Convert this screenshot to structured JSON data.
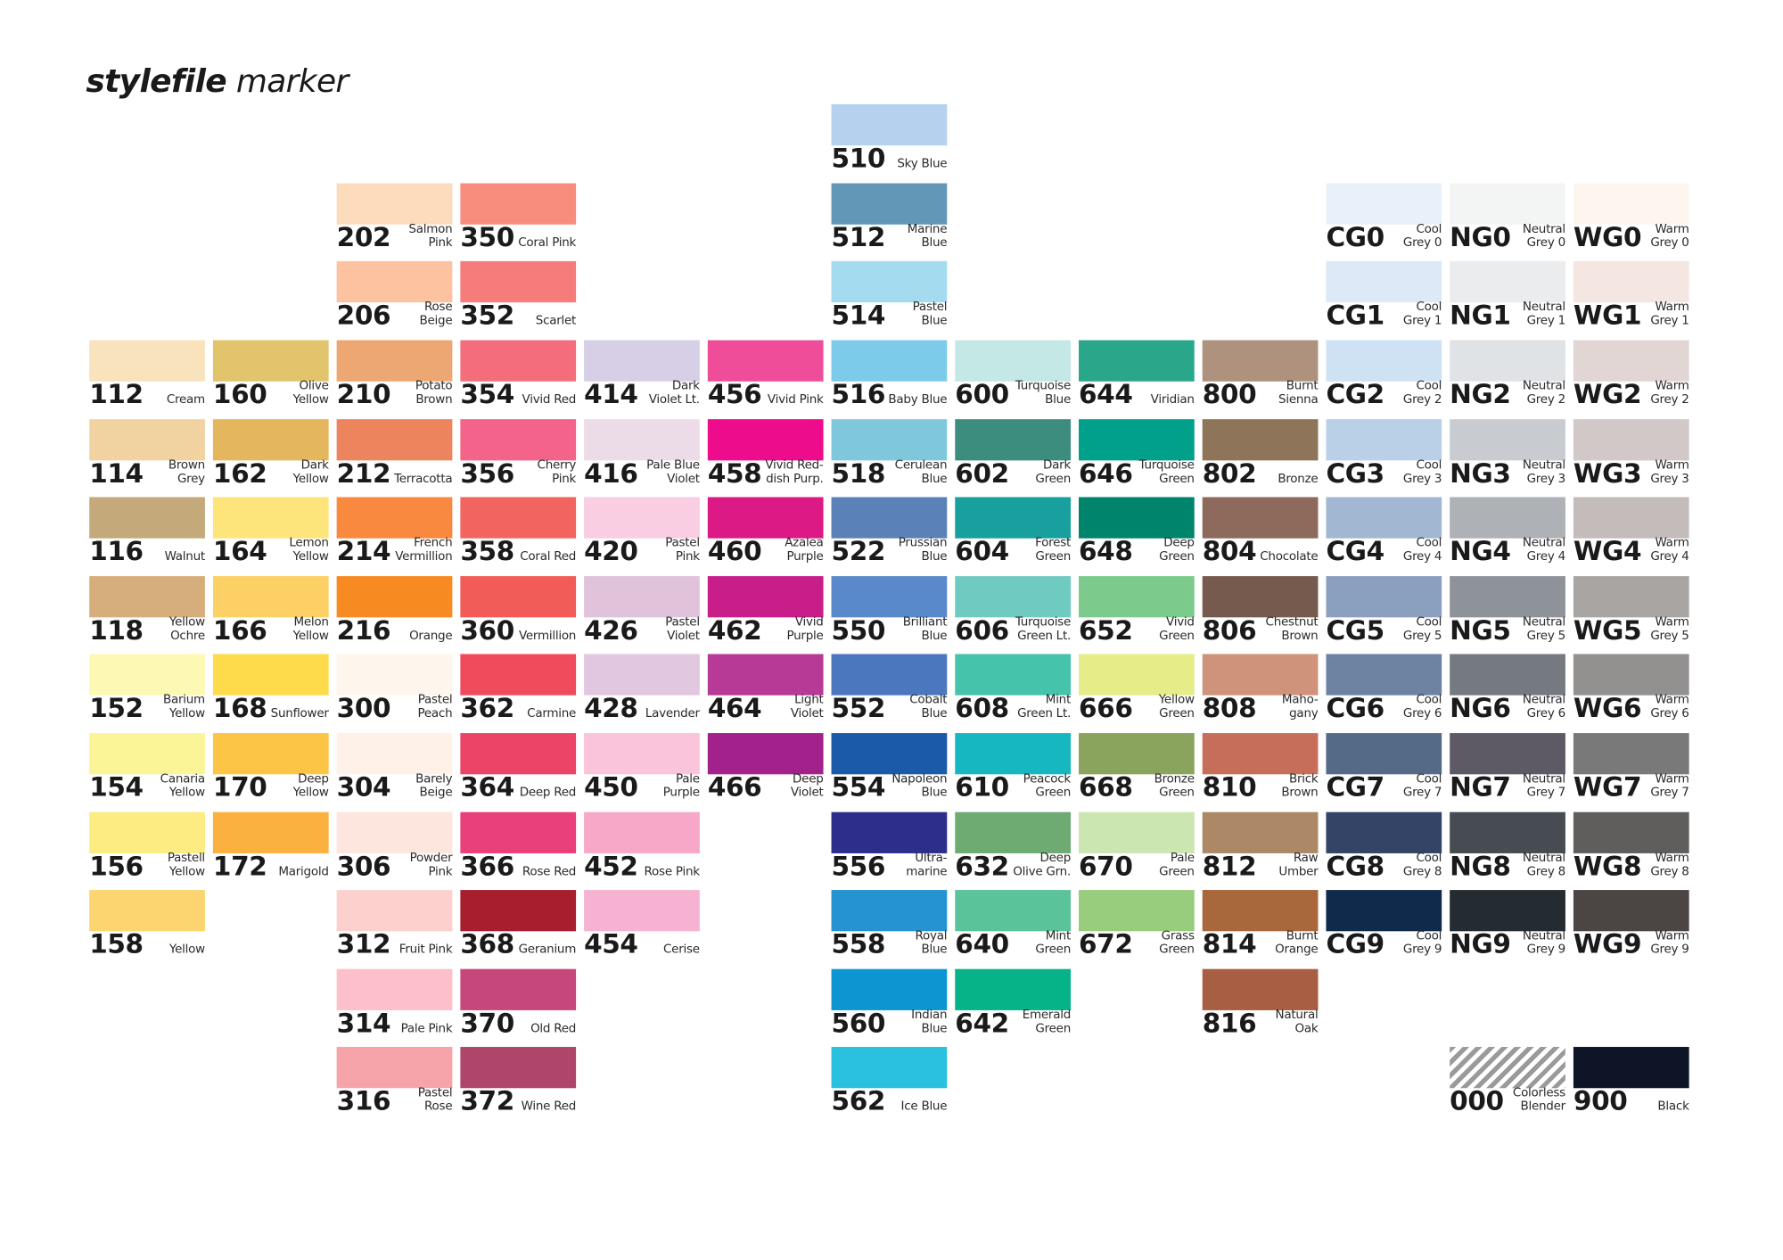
{
  "title": {
    "bold": "stylefile",
    "rest": " marker"
  },
  "swatches": [
    {
      "code": "112",
      "name": "Cream",
      "color": "#f9e3bd",
      "col": 0,
      "row": 0
    },
    {
      "code": "114",
      "name": "Brown\nGrey",
      "color": "#f0d3a0",
      "col": 0,
      "row": 1
    },
    {
      "code": "116",
      "name": "Walnut",
      "color": "#c4a97b",
      "col": 0,
      "row": 2
    },
    {
      "code": "118",
      "name": "Yellow\nOchre",
      "color": "#d6ae7b",
      "col": 0,
      "row": 3
    },
    {
      "code": "152",
      "name": "Barium\nYellow",
      "color": "#fdf8b3",
      "col": 0,
      "row": 4
    },
    {
      "code": "154",
      "name": "Canaria\nYellow",
      "color": "#fcf597",
      "col": 0,
      "row": 5
    },
    {
      "code": "156",
      "name": "Pastell\nYellow",
      "color": "#fdec81",
      "col": 0,
      "row": 6
    },
    {
      "code": "158",
      "name": "Yellow",
      "color": "#fcd570",
      "col": 0,
      "row": 7
    },
    {
      "code": "160",
      "name": "Olive\nYellow",
      "color": "#e2c46c",
      "col": 1,
      "row": 0
    },
    {
      "code": "162",
      "name": "Dark\nYellow",
      "color": "#e4b65d",
      "col": 1,
      "row": 1
    },
    {
      "code": "164",
      "name": "Lemon\nYellow",
      "color": "#fde57c",
      "col": 1,
      "row": 2
    },
    {
      "code": "166",
      "name": "Melon\nYellow",
      "color": "#fdd065",
      "col": 1,
      "row": 3
    },
    {
      "code": "168",
      "name": "Sunflower",
      "color": "#fedb4a",
      "col": 1,
      "row": 4
    },
    {
      "code": "170",
      "name": "Deep\nYellow",
      "color": "#fdc545",
      "col": 1,
      "row": 5
    },
    {
      "code": "172",
      "name": "Marigold",
      "color": "#fbb13f",
      "col": 1,
      "row": 6
    },
    {
      "code": "202",
      "name": "Salmon\nPink",
      "color": "#fddbbd",
      "col": 2,
      "row": -2
    },
    {
      "code": "206",
      "name": "Rose\nBeige",
      "color": "#fdc3a1",
      "col": 2,
      "row": -1
    },
    {
      "code": "210",
      "name": "Potato\nBrown",
      "color": "#eda773",
      "col": 2,
      "row": 0
    },
    {
      "code": "212",
      "name": "Terracotta",
      "color": "#ec855e",
      "col": 2,
      "row": 1
    },
    {
      "code": "214",
      "name": "French\nVermillion",
      "color": "#f9893f",
      "col": 2,
      "row": 2
    },
    {
      "code": "216",
      "name": "Orange",
      "color": "#f78b21",
      "col": 2,
      "row": 3
    },
    {
      "code": "300",
      "name": "Pastel\nPeach",
      "color": "#fef5ec",
      "col": 2,
      "row": 4
    },
    {
      "code": "304",
      "name": "Barely\nBeige",
      "color": "#fdf1e8",
      "col": 2,
      "row": 5
    },
    {
      "code": "306",
      "name": "Powder\nPink",
      "color": "#fde6de",
      "col": 2,
      "row": 6
    },
    {
      "code": "312",
      "name": "Fruit Pink",
      "color": "#fcd1cd",
      "col": 2,
      "row": 7
    },
    {
      "code": "314",
      "name": "Pale Pink",
      "color": "#fdbfca",
      "col": 2,
      "row": 8
    },
    {
      "code": "316",
      "name": "Pastel\nRose",
      "color": "#f7a3aa",
      "col": 2,
      "row": 9
    },
    {
      "code": "350",
      "name": "Coral Pink",
      "color": "#f88d7e",
      "col": 3,
      "row": -2
    },
    {
      "code": "352",
      "name": "Scarlet",
      "color": "#f67b7b",
      "col": 3,
      "row": -1
    },
    {
      "code": "354",
      "name": "Vivid Red",
      "color": "#f46d7d",
      "col": 3,
      "row": 0
    },
    {
      "code": "356",
      "name": "Cherry\nPink",
      "color": "#f46389",
      "col": 3,
      "row": 1
    },
    {
      "code": "358",
      "name": "Coral Red",
      "color": "#f26460",
      "col": 3,
      "row": 2
    },
    {
      "code": "360",
      "name": "Vermillion",
      "color": "#f15c58",
      "col": 3,
      "row": 3
    },
    {
      "code": "362",
      "name": "Carmine",
      "color": "#ef4b5c",
      "col": 3,
      "row": 4
    },
    {
      "code": "364",
      "name": "Deep Red",
      "color": "#ec4467",
      "col": 3,
      "row": 5
    },
    {
      "code": "366",
      "name": "Rose Red",
      "color": "#e9407b",
      "col": 3,
      "row": 6
    },
    {
      "code": "368",
      "name": "Geranium",
      "color": "#a71f2f",
      "col": 3,
      "row": 7
    },
    {
      "code": "370",
      "name": "Old Red",
      "color": "#c6477a",
      "col": 3,
      "row": 8
    },
    {
      "code": "372",
      "name": "Wine Red",
      "color": "#ae466b",
      "col": 3,
      "row": 9
    },
    {
      "code": "414",
      "name": "Dark\nViolet Lt.",
      "color": "#d7cfe5",
      "col": 4,
      "row": 0
    },
    {
      "code": "416",
      "name": "Pale Blue\nViolet",
      "color": "#ecdce8",
      "col": 4,
      "row": 1
    },
    {
      "code": "420",
      "name": "Pastel\nPink",
      "color": "#f9cde2",
      "col": 4,
      "row": 2
    },
    {
      "code": "426",
      "name": "Pastel\nViolet",
      "color": "#e1c2db",
      "col": 4,
      "row": 3
    },
    {
      "code": "428",
      "name": "Lavender",
      "color": "#e2c7e1",
      "col": 4,
      "row": 4
    },
    {
      "code": "450",
      "name": "Pale\nPurple",
      "color": "#fac4da",
      "col": 4,
      "row": 5
    },
    {
      "code": "452",
      "name": "Rose Pink",
      "color": "#f7a8c8",
      "col": 4,
      "row": 6
    },
    {
      "code": "454",
      "name": "Cerise",
      "color": "#f5b3d1",
      "col": 4,
      "row": 7
    },
    {
      "code": "456",
      "name": "Vivid Pink",
      "color": "#ef4d9a",
      "col": 5,
      "row": 0
    },
    {
      "code": "458",
      "name": "Vivid Red-\ndish Purp.",
      "color": "#ec0c8c",
      "col": 5,
      "row": 1
    },
    {
      "code": "460",
      "name": "Azalea\nPurple",
      "color": "#dc1a85",
      "col": 5,
      "row": 2
    },
    {
      "code": "462",
      "name": "Vivid\nPurple",
      "color": "#c81e8a",
      "col": 5,
      "row": 3
    },
    {
      "code": "464",
      "name": "Light\nViolet",
      "color": "#b73a97",
      "col": 5,
      "row": 4
    },
    {
      "code": "466",
      "name": "Deep\nViolet",
      "color": "#a2218a",
      "col": 5,
      "row": 5
    },
    {
      "code": "510",
      "name": "Sky Blue",
      "color": "#b5d1ee",
      "col": 6,
      "row": -3
    },
    {
      "code": "512",
      "name": "Marine\nBlue",
      "color": "#6297b7",
      "col": 6,
      "row": -2
    },
    {
      "code": "514",
      "name": "Pastel\nBlue",
      "color": "#a5dbef",
      "col": 6,
      "row": -1
    },
    {
      "code": "516",
      "name": "Baby Blue",
      "color": "#7dcbea",
      "col": 6,
      "row": 0
    },
    {
      "code": "518",
      "name": "Cerulean\nBlue",
      "color": "#7fc8dc",
      "col": 6,
      "row": 1
    },
    {
      "code": "522",
      "name": "Prussian\nBlue",
      "color": "#5b82b8",
      "col": 6,
      "row": 2
    },
    {
      "code": "550",
      "name": "Brilliant\nBlue",
      "color": "#5989ca",
      "col": 6,
      "row": 3
    },
    {
      "code": "552",
      "name": "Cobalt\nBlue",
      "color": "#4b77bf",
      "col": 6,
      "row": 4
    },
    {
      "code": "554",
      "name": "Napoleon\nBlue",
      "color": "#1a5aa8",
      "col": 6,
      "row": 5
    },
    {
      "code": "556",
      "name": "Ultra-\nmarine",
      "color": "#2d2e8b",
      "col": 6,
      "row": 6
    },
    {
      "code": "558",
      "name": "Royal\nBlue",
      "color": "#2593d0",
      "col": 6,
      "row": 7
    },
    {
      "code": "560",
      "name": "Indian\nBlue",
      "color": "#0d95d2",
      "col": 6,
      "row": 8
    },
    {
      "code": "562",
      "name": "Ice Blue",
      "color": "#29c1dd",
      "col": 6,
      "row": 9
    },
    {
      "code": "600",
      "name": "Turquoise\nBlue",
      "color": "#c3e8e6",
      "col": 7,
      "row": 0
    },
    {
      "code": "602",
      "name": "Dark\nGreen",
      "color": "#3d8d7e",
      "col": 7,
      "row": 1
    },
    {
      "code": "604",
      "name": "Forest\nGreen",
      "color": "#17a09d",
      "col": 7,
      "row": 2
    },
    {
      "code": "606",
      "name": "Turquoise\nGreen Lt.",
      "color": "#6fcbc2",
      "col": 7,
      "row": 3
    },
    {
      "code": "608",
      "name": "Mint\nGreen Lt.",
      "color": "#46c3ab",
      "col": 7,
      "row": 4
    },
    {
      "code": "610",
      "name": "Peacock\nGreen",
      "color": "#16b7c1",
      "col": 7,
      "row": 5
    },
    {
      "code": "632",
      "name": "Deep\nOlive Grn.",
      "color": "#6eab73",
      "col": 7,
      "row": 6
    },
    {
      "code": "640",
      "name": "Mint\nGreen",
      "color": "#5bc39a",
      "col": 7,
      "row": 7
    },
    {
      "code": "642",
      "name": "Emerald\nGreen",
      "color": "#06b287",
      "col": 7,
      "row": 8
    },
    {
      "code": "644",
      "name": "Viridian",
      "color": "#2aa78b",
      "col": 8,
      "row": 0
    },
    {
      "code": "646",
      "name": "Turquoise\nGreen",
      "color": "#00a08a",
      "col": 8,
      "row": 1
    },
    {
      "code": "648",
      "name": "Deep\nGreen",
      "color": "#00846c",
      "col": 8,
      "row": 2
    },
    {
      "code": "652",
      "name": "Vivid\nGreen",
      "color": "#7ccb8d",
      "col": 8,
      "row": 3
    },
    {
      "code": "666",
      "name": "Yellow\nGreen",
      "color": "#e5ec88",
      "col": 8,
      "row": 4
    },
    {
      "code": "668",
      "name": "Bronze\nGreen",
      "color": "#8aa35d",
      "col": 8,
      "row": 5
    },
    {
      "code": "670",
      "name": "Pale\nGreen",
      "color": "#cbe6b0",
      "col": 8,
      "row": 6
    },
    {
      "code": "672",
      "name": "Grass\nGreen",
      "color": "#98cd7d",
      "col": 8,
      "row": 7
    },
    {
      "code": "800",
      "name": "Burnt\nSienna",
      "color": "#ae927d",
      "col": 9,
      "row": 0
    },
    {
      "code": "802",
      "name": "Bronze",
      "color": "#8e7458",
      "col": 9,
      "row": 1
    },
    {
      "code": "804",
      "name": "Chocolate",
      "color": "#8d6a5c",
      "col": 9,
      "row": 2
    },
    {
      "code": "806",
      "name": "Chestnut\nBrown",
      "color": "#765a4d",
      "col": 9,
      "row": 3
    },
    {
      "code": "808",
      "name": "Maho-\ngany",
      "color": "#cf937c",
      "col": 9,
      "row": 4
    },
    {
      "code": "810",
      "name": "Brick\nBrown",
      "color": "#c76e5a",
      "col": 9,
      "row": 5
    },
    {
      "code": "812",
      "name": "Raw\nUmber",
      "color": "#ad8866",
      "col": 9,
      "row": 6
    },
    {
      "code": "814",
      "name": "Burnt\nOrange",
      "color": "#a9673c",
      "col": 9,
      "row": 7
    },
    {
      "code": "816",
      "name": "Natural\nOak",
      "color": "#a85e43",
      "col": 9,
      "row": 8
    },
    {
      "code": "CG0",
      "name": "Cool\nGrey 0",
      "color": "#e8f1fa",
      "col": 10,
      "row": -2
    },
    {
      "code": "CG1",
      "name": "Cool\nGrey 1",
      "color": "#dde9f6",
      "col": 10,
      "row": -1
    },
    {
      "code": "CG2",
      "name": "Cool\nGrey 2",
      "color": "#cee2f4",
      "col": 10,
      "row": 0
    },
    {
      "code": "CG3",
      "name": "Cool\nGrey 3",
      "color": "#b9d0e6",
      "col": 10,
      "row": 1
    },
    {
      "code": "CG4",
      "name": "Cool\nGrey 4",
      "color": "#a2b8d2",
      "col": 10,
      "row": 2
    },
    {
      "code": "CG5",
      "name": "Cool\nGrey 5",
      "color": "#8b9fbf",
      "col": 10,
      "row": 3
    },
    {
      "code": "CG6",
      "name": "Cool\nGrey 6",
      "color": "#6e82a2",
      "col": 10,
      "row": 4
    },
    {
      "code": "CG7",
      "name": "Cool\nGrey 7",
      "color": "#556a87",
      "col": 10,
      "row": 5
    },
    {
      "code": "CG8",
      "name": "Cool\nGrey 8",
      "color": "#334466",
      "col": 10,
      "row": 6
    },
    {
      "code": "CG9",
      "name": "Cool\nGrey 9",
      "color": "#0f2a4a",
      "col": 10,
      "row": 7
    },
    {
      "code": "NG0",
      "name": "Neutral\nGrey 0",
      "color": "#f3f5f5",
      "col": 11,
      "row": -2
    },
    {
      "code": "NG1",
      "name": "Neutral\nGrey 1",
      "color": "#ebeced",
      "col": 11,
      "row": -1
    },
    {
      "code": "NG2",
      "name": "Neutral\nGrey 2",
      "color": "#e0e3e6",
      "col": 11,
      "row": 0
    },
    {
      "code": "NG3",
      "name": "Neutral\nGrey 3",
      "color": "#c8ccd0",
      "col": 11,
      "row": 1
    },
    {
      "code": "NG4",
      "name": "Neutral\nGrey 4",
      "color": "#aeb1b5",
      "col": 11,
      "row": 2
    },
    {
      "code": "NG5",
      "name": "Neutral\nGrey 5",
      "color": "#8e9299",
      "col": 11,
      "row": 3
    },
    {
      "code": "NG6",
      "name": "Neutral\nGrey 6",
      "color": "#757a81",
      "col": 11,
      "row": 4
    },
    {
      "code": "NG7",
      "name": "Neutral\nGrey 7",
      "color": "#5d5a66",
      "col": 11,
      "row": 5
    },
    {
      "code": "NG8",
      "name": "Neutral\nGrey 8",
      "color": "#464c52",
      "col": 11,
      "row": 6
    },
    {
      "code": "NG9",
      "name": "Neutral\nGrey 9",
      "color": "#242b31",
      "col": 11,
      "row": 7
    },
    {
      "code": "WG0",
      "name": "Warm\nGrey 0",
      "color": "#fdf6ee",
      "col": 12,
      "row": -2
    },
    {
      "code": "WG1",
      "name": "Warm\nGrey 1",
      "color": "#f4e6e0",
      "col": 12,
      "row": -1
    },
    {
      "code": "WG2",
      "name": "Warm\nGrey 2",
      "color": "#e1d6d3",
      "col": 12,
      "row": 0
    },
    {
      "code": "WG3",
      "name": "Warm\nGrey 3",
      "color": "#d1c8c7",
      "col": 12,
      "row": 1
    },
    {
      "code": "WG4",
      "name": "Warm\nGrey 4",
      "color": "#c3bcbb",
      "col": 12,
      "row": 2
    },
    {
      "code": "WG5",
      "name": "Warm\nGrey 5",
      "color": "#a9a5a3",
      "col": 12,
      "row": 3
    },
    {
      "code": "WG6",
      "name": "Warm\nGrey 6",
      "color": "#939090",
      "col": 12,
      "row": 4
    },
    {
      "code": "WG7",
      "name": "Warm\nGrey 7",
      "color": "#7a7979",
      "col": 12,
      "row": 5
    },
    {
      "code": "WG8",
      "name": "Warm\nGrey 8",
      "color": "#5f5e5d",
      "col": 12,
      "row": 6
    },
    {
      "code": "WG9",
      "name": "Warm\nGrey 9",
      "color": "#4b4644",
      "col": 12,
      "row": 7
    },
    {
      "code": "000",
      "name": "Colorless\nBlender",
      "color": "hatched",
      "col": 11,
      "row": 9
    },
    {
      "code": "900",
      "name": "Black",
      "color": "#0d1526",
      "col": 12,
      "row": 9
    }
  ]
}
